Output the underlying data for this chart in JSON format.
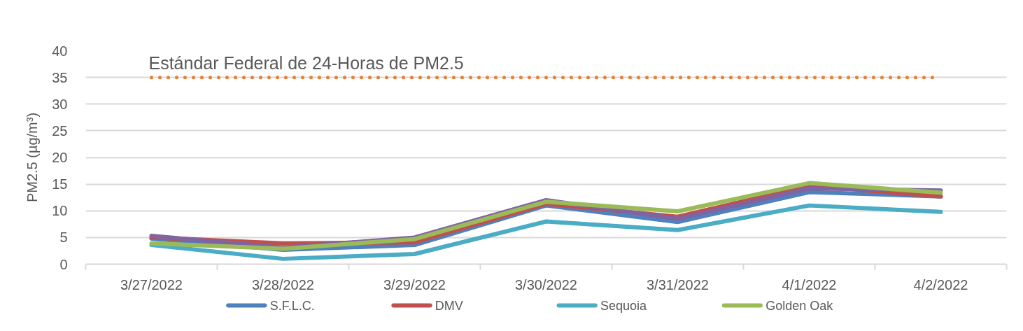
{
  "chart_data": {
    "type": "line",
    "ylabel": "PM2.5 (µg/m³)",
    "categories": [
      "3/27/2022",
      "3/28/2022",
      "3/29/2022",
      "3/30/2022",
      "3/31/2022",
      "4/1/2022",
      "4/2/2022"
    ],
    "series": [
      {
        "name": "S.F.L.C.",
        "color": "#4f81bd",
        "values": [
          4.8,
          2.7,
          3.6,
          11.0,
          7.9,
          13.5,
          12.7
        ]
      },
      {
        "name": "DMV",
        "color": "#c0504d",
        "values": [
          5.0,
          3.9,
          4.1,
          11.3,
          8.9,
          14.7,
          12.7
        ]
      },
      {
        "color": "#8064a2",
        "values": [
          5.3,
          3.1,
          5.0,
          12.0,
          8.5,
          14.2,
          13.8
        ]
      },
      {
        "name": "Sequoia",
        "color": "#4bacc6",
        "values": [
          3.6,
          1.0,
          1.9,
          8.0,
          6.4,
          11.0,
          9.8
        ]
      },
      {
        "name": "Golden Oak",
        "color": "#9bbb59",
        "values": [
          3.9,
          2.9,
          4.7,
          11.7,
          9.9,
          15.2,
          13.4
        ]
      }
    ],
    "ylim": [
      0,
      40
    ],
    "yticks": [
      0,
      5,
      10,
      15,
      20,
      25,
      30,
      35,
      40
    ],
    "grid": "y",
    "legend": "bottom",
    "ref_lines": [
      {
        "axis": "y",
        "value": 35,
        "label": "Estándar Federal de 24-Horas de PM2.5",
        "color": "#ed7d31",
        "line_style": "dotted"
      }
    ]
  }
}
